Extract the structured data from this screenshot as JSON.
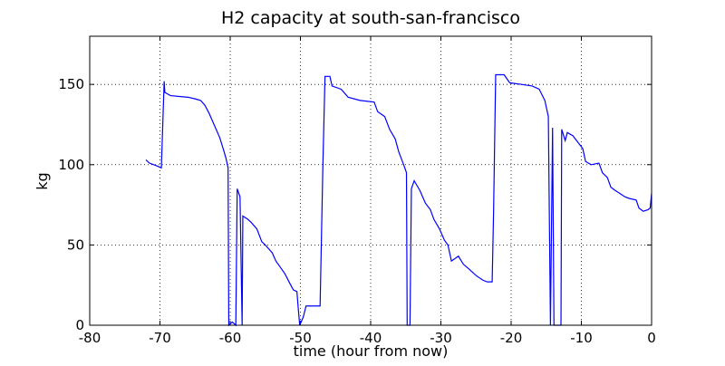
{
  "chart_data": {
    "type": "line",
    "title": "H2 capacity at south-san-francisco",
    "xlabel": "time (hour from now)",
    "ylabel": "kg",
    "xlim": [
      -80,
      0
    ],
    "ylim": [
      0,
      180
    ],
    "xticks": [
      -80,
      -70,
      -60,
      -50,
      -40,
      -30,
      -20,
      -10,
      0
    ],
    "yticks": [
      0,
      50,
      100,
      150
    ],
    "grid": true,
    "x": [
      -72,
      -71.5,
      -70.3,
      -69.8,
      -69.6,
      -69.4,
      -69.3,
      -68.5,
      -66,
      -65,
      -64.2,
      -63.6,
      -63,
      -62.2,
      -61.5,
      -61,
      -60.6,
      -60.3,
      -60.2,
      -59.7,
      -59.2,
      -59,
      -58.6,
      -58.3,
      -58.2,
      -57.5,
      -57,
      -56.2,
      -55.5,
      -55,
      -54,
      -53.5,
      -53,
      -52.2,
      -51.5,
      -51,
      -50.5,
      -50.3,
      -50.1,
      -49.6,
      -49.2,
      -47.2,
      -46.8,
      -46.5,
      -45.8,
      -45.5,
      -44.2,
      -43.2,
      -41.5,
      -39.5,
      -39,
      -38,
      -37.3,
      -36.5,
      -36,
      -35.3,
      -34.9,
      -34.8,
      -34.4,
      -34.2,
      -33.8,
      -33,
      -32.2,
      -31.5,
      -31,
      -30.2,
      -29.5,
      -29,
      -28.5,
      -27.5,
      -26.8,
      -26,
      -25,
      -24,
      -23.4,
      -22.7,
      -22.5,
      -22.2,
      -21,
      -20.2,
      -18.5,
      -17,
      -16,
      -15.2,
      -14.7,
      -14.4,
      -14.1,
      -13.9,
      -12.9,
      -12.8,
      -12.3,
      -12,
      -11.2,
      -10.5,
      -9.8,
      -9.4,
      -8.6,
      -7.5,
      -7,
      -6.3,
      -5.8,
      -5.2,
      -4.5,
      -3.8,
      -3.2,
      -2.2,
      -1.8,
      -1.2,
      -0.5,
      -0.2,
      0
    ],
    "series": [
      {
        "color": "#0000ff",
        "values": [
          103,
          101,
          99,
          98,
          125,
          152,
          145,
          143,
          142,
          141,
          140,
          137,
          132,
          124,
          117,
          110,
          104,
          98,
          0,
          2,
          0,
          85,
          80,
          0,
          68,
          66,
          64,
          60,
          52,
          50,
          45,
          40,
          37,
          32,
          26,
          22,
          21,
          10,
          0,
          5,
          12,
          12,
          100,
          155,
          155,
          149,
          147,
          142,
          140,
          139,
          133,
          130,
          122,
          116,
          108,
          100,
          95,
          0,
          0,
          85,
          90,
          84,
          76,
          72,
          66,
          60,
          53,
          50,
          40,
          43,
          38,
          35,
          31,
          28,
          27,
          27,
          70,
          156,
          156,
          151,
          150,
          149,
          147,
          140,
          130,
          0,
          123,
          0,
          0,
          122,
          115,
          120,
          118,
          114,
          110,
          102,
          100,
          101,
          95,
          92,
          86,
          84,
          82,
          80,
          79,
          78,
          73,
          71,
          72,
          73,
          82
        ]
      }
    ]
  }
}
